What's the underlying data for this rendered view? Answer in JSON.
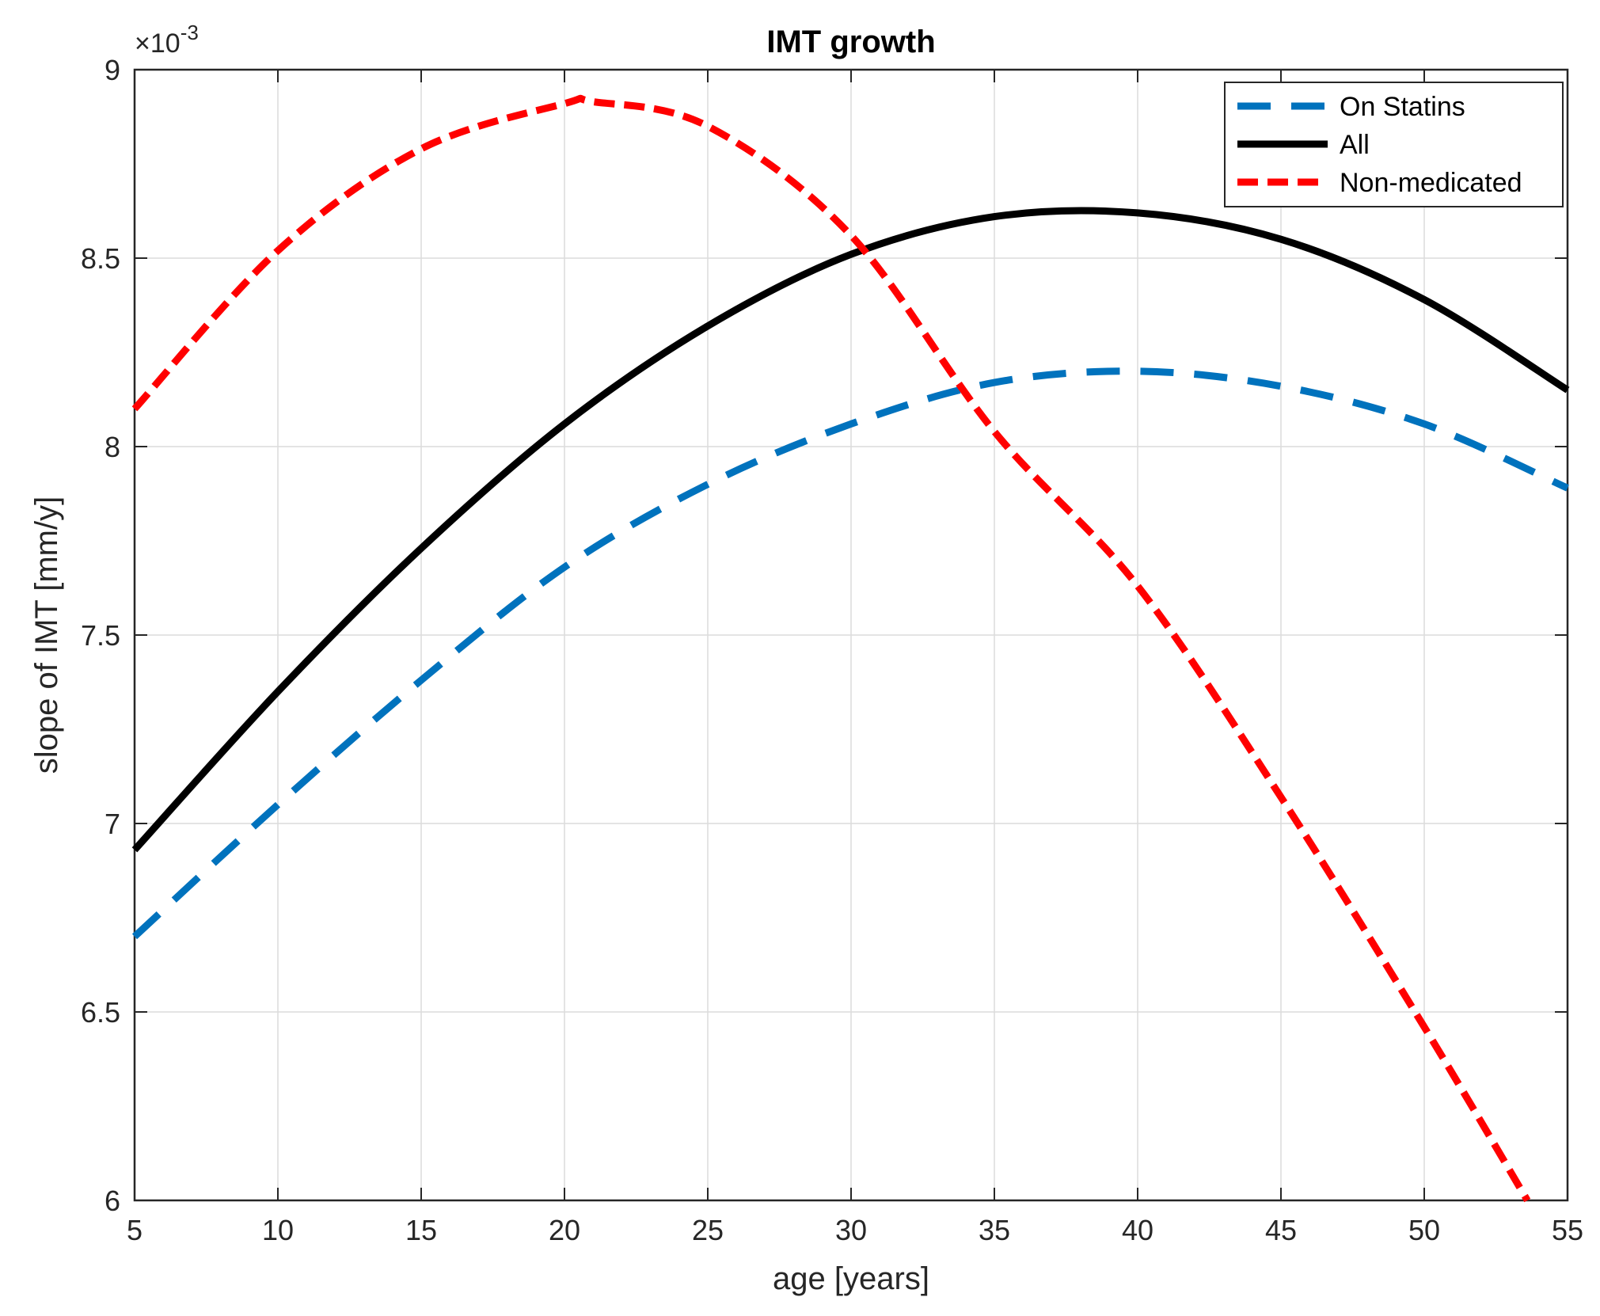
{
  "chart_data": {
    "type": "line",
    "title": "IMT growth",
    "xlabel": "age [years]",
    "ylabel": "slope of IMT [mm/y]",
    "xlim": [
      5,
      55
    ],
    "ylim": [
      6,
      9
    ],
    "xticks": [
      5,
      10,
      15,
      20,
      25,
      30,
      35,
      40,
      45,
      50,
      55
    ],
    "yticks": [
      6,
      6.5,
      7,
      7.5,
      8,
      8.5,
      9
    ],
    "xtick_labels": [
      "5",
      "10",
      "15",
      "20",
      "25",
      "30",
      "35",
      "40",
      "45",
      "50",
      "55"
    ],
    "ytick_labels": [
      "6",
      "6.5",
      "7",
      "7.5",
      "8",
      "8.5",
      "9"
    ],
    "y_multiplier": "×10",
    "y_multiplier_exponent": "-3",
    "grid": true,
    "legend_position": "top-right",
    "series": [
      {
        "name": "On Statins",
        "color": "#0072BD",
        "style": "dashed",
        "x": [
          5,
          10,
          15,
          20,
          25,
          30,
          35,
          40,
          45,
          50,
          55
        ],
        "y": [
          6.7,
          7.05,
          7.38,
          7.68,
          7.9,
          8.06,
          8.17,
          8.2,
          8.16,
          8.06,
          7.89
        ]
      },
      {
        "name": "All",
        "color": "#000000",
        "style": "solid",
        "x": [
          5,
          10,
          15,
          20,
          25,
          30,
          35,
          40,
          45,
          50,
          55
        ],
        "y": [
          6.93,
          7.35,
          7.73,
          8.06,
          8.32,
          8.51,
          8.61,
          8.62,
          8.55,
          8.39,
          8.15
        ]
      },
      {
        "name": "Non-medicated",
        "color": "#FF0000",
        "style": "dashed",
        "x": [
          5,
          10,
          15,
          20,
          21,
          25,
          30,
          35,
          40,
          45,
          50,
          53.6
        ],
        "y": [
          8.1,
          8.52,
          8.79,
          8.91,
          8.915,
          8.85,
          8.56,
          8.04,
          7.63,
          7.07,
          6.46,
          6.0
        ]
      }
    ]
  }
}
